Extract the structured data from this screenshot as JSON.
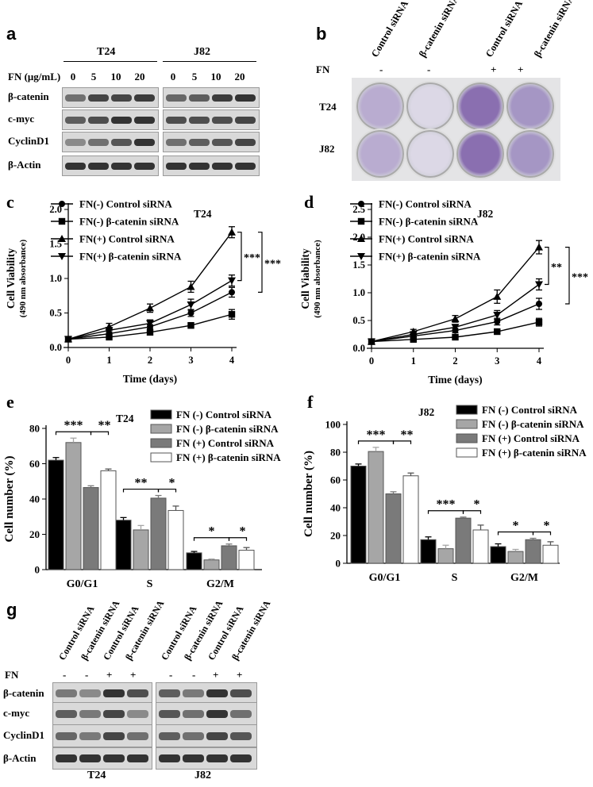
{
  "panels": {
    "a": {
      "label": "a",
      "groups": [
        "T24",
        "J82"
      ],
      "fn_header": "FN (μg/mL)",
      "doses": [
        "0",
        "5",
        "10",
        "20",
        "0",
        "5",
        "10",
        "20"
      ],
      "rows": [
        "β-catenin",
        "c-myc",
        "CyclinD1",
        "β-Actin"
      ]
    },
    "b": {
      "label": "b",
      "columns": [
        "Control siRNA",
        "β-catenin siRNA",
        "Control siRNA",
        "β-catenin siRNA"
      ],
      "fn_label": "FN",
      "fn_signs": [
        "-",
        "-",
        "+",
        "+"
      ],
      "rows": [
        "T24",
        "J82"
      ]
    },
    "g": {
      "label": "g",
      "columns": [
        "Control siRNA",
        "β-catenin siRNA",
        "Control siRNA",
        "β-catenin siRNA",
        "Control siRNA",
        "β-catenin siRNA",
        "Control siRNA",
        "β-catenin siRNA"
      ],
      "fn_label": "FN",
      "fn_signs": [
        "-",
        "-",
        "+",
        "+",
        "-",
        "-",
        "+",
        "+"
      ],
      "rows": [
        "β-catenin",
        "c-myc",
        "CyclinD1",
        "β-Actin"
      ],
      "groups": [
        "T24",
        "J82"
      ]
    }
  },
  "chart_data": [
    {
      "id": "c",
      "label": "c",
      "type": "line",
      "title": "T24",
      "xlabel": "Time (days)",
      "ylabel": "Cell Viability",
      "ylabel2": "(490 nm absorbance)",
      "x": [
        0,
        1,
        2,
        3,
        4
      ],
      "xlim": [
        0,
        4
      ],
      "ylim": [
        0,
        2.0
      ],
      "yticks": [
        "0.0",
        "0.5",
        "1.0",
        "1.5",
        "2.0"
      ],
      "xticks": [
        "0",
        "1",
        "2",
        "3",
        "4"
      ],
      "series": [
        {
          "name": "FN(-) Control siRNA",
          "marker": "circle",
          "values": [
            0.12,
            0.2,
            0.3,
            0.5,
            0.8
          ],
          "err": [
            0.02,
            0.03,
            0.03,
            0.05,
            0.07
          ]
        },
        {
          "name": "FN(-) β-catenin siRNA",
          "marker": "square",
          "values": [
            0.12,
            0.15,
            0.22,
            0.32,
            0.48
          ],
          "err": [
            0.02,
            0.02,
            0.03,
            0.04,
            0.07
          ]
        },
        {
          "name": "FN(+) Control siRNA",
          "marker": "triangle-up",
          "values": [
            0.12,
            0.3,
            0.57,
            0.88,
            1.67
          ],
          "err": [
            0.02,
            0.05,
            0.06,
            0.08,
            0.08
          ]
        },
        {
          "name": "FN(+) β-catenin siRNA",
          "marker": "triangle-down",
          "values": [
            0.12,
            0.25,
            0.35,
            0.62,
            0.97
          ],
          "err": [
            0.02,
            0.04,
            0.05,
            0.08,
            0.08
          ]
        }
      ],
      "significance": [
        "***",
        "***"
      ]
    },
    {
      "id": "d",
      "label": "d",
      "type": "line",
      "title": "J82",
      "xlabel": "Time (days)",
      "ylabel": "Cell Viability",
      "ylabel2": "(490 nm absorbance)",
      "x": [
        0,
        1,
        2,
        3,
        4
      ],
      "xlim": [
        0,
        4
      ],
      "ylim": [
        0,
        2.5
      ],
      "yticks": [
        "0.0",
        "0.5",
        "1.0",
        "1.5",
        "2.0",
        "2.5"
      ],
      "xticks": [
        "0",
        "1",
        "2",
        "3",
        "4"
      ],
      "series": [
        {
          "name": "FN(-) Control siRNA",
          "marker": "circle",
          "values": [
            0.12,
            0.22,
            0.32,
            0.48,
            0.8
          ],
          "err": [
            0.02,
            0.03,
            0.04,
            0.06,
            0.1
          ]
        },
        {
          "name": "FN(-) β-catenin siRNA",
          "marker": "square",
          "values": [
            0.12,
            0.16,
            0.2,
            0.3,
            0.47
          ],
          "err": [
            0.02,
            0.02,
            0.03,
            0.04,
            0.07
          ]
        },
        {
          "name": "FN(+) Control siRNA",
          "marker": "triangle-up",
          "values": [
            0.12,
            0.3,
            0.53,
            0.93,
            1.82
          ],
          "err": [
            0.02,
            0.04,
            0.06,
            0.12,
            0.12
          ]
        },
        {
          "name": "FN(+) β-catenin siRNA",
          "marker": "triangle-down",
          "values": [
            0.12,
            0.25,
            0.38,
            0.6,
            1.15
          ],
          "err": [
            0.02,
            0.04,
            0.05,
            0.08,
            0.1
          ]
        }
      ],
      "significance": [
        "**",
        "***"
      ]
    },
    {
      "id": "e",
      "label": "e",
      "type": "bar",
      "title": "T24",
      "ylabel": "Cell number (%)",
      "ylim": [
        0,
        80
      ],
      "yticks": [
        "0",
        "20",
        "40",
        "60",
        "80"
      ],
      "categories": [
        "G0/G1",
        "S",
        "G2/M"
      ],
      "series": [
        {
          "name": "FN (-)  Control siRNA",
          "color": "#000000",
          "values": [
            62,
            28,
            9.5
          ],
          "err": [
            1.5,
            1.5,
            0.8
          ]
        },
        {
          "name": "FN (-)  β-catenin siRNA",
          "color": "#a6a6a6",
          "values": [
            72,
            22.5,
            5.5
          ],
          "err": [
            2.5,
            2.5,
            0.5
          ]
        },
        {
          "name": "FN (+)  Control siRNA",
          "color": "#7a7a7a",
          "values": [
            46.5,
            40.5,
            13.5
          ],
          "err": [
            1.0,
            1.5,
            1.0
          ]
        },
        {
          "name": "FN (+)  β-catenin siRNA",
          "color": "#ffffff",
          "values": [
            56,
            33.5,
            11
          ],
          "err": [
            1.0,
            2.5,
            1.5
          ]
        }
      ],
      "significance": [
        [
          "***",
          "**"
        ],
        [
          "**",
          "*"
        ],
        [
          "*",
          "*"
        ]
      ]
    },
    {
      "id": "f",
      "label": "f",
      "type": "bar",
      "title": "J82",
      "ylabel": "Cell number (%)",
      "ylim": [
        0,
        100
      ],
      "yticks": [
        "0",
        "20",
        "40",
        "60",
        "80",
        "100"
      ],
      "categories": [
        "G0/G1",
        "S",
        "G2/M"
      ],
      "series": [
        {
          "name": "FN (-)  Control siRNA",
          "color": "#000000",
          "values": [
            70,
            17,
            12
          ],
          "err": [
            1.5,
            2.0,
            2.0
          ]
        },
        {
          "name": "FN (-)  β-catenin siRNA",
          "color": "#a6a6a6",
          "values": [
            80.5,
            10.5,
            8.5
          ],
          "err": [
            3.0,
            2.5,
            1.5
          ]
        },
        {
          "name": "FN (+)  Control siRNA",
          "color": "#7a7a7a",
          "values": [
            50,
            32.5,
            17
          ],
          "err": [
            1.5,
            0.8,
            1.0
          ]
        },
        {
          "name": "FN (+)  β-catenin siRNA",
          "color": "#ffffff",
          "values": [
            63,
            24,
            13
          ],
          "err": [
            2.0,
            3.5,
            2.5
          ]
        }
      ],
      "significance": [
        [
          "***",
          "**"
        ],
        [
          "***",
          "*"
        ],
        [
          "*",
          "*"
        ]
      ]
    }
  ]
}
